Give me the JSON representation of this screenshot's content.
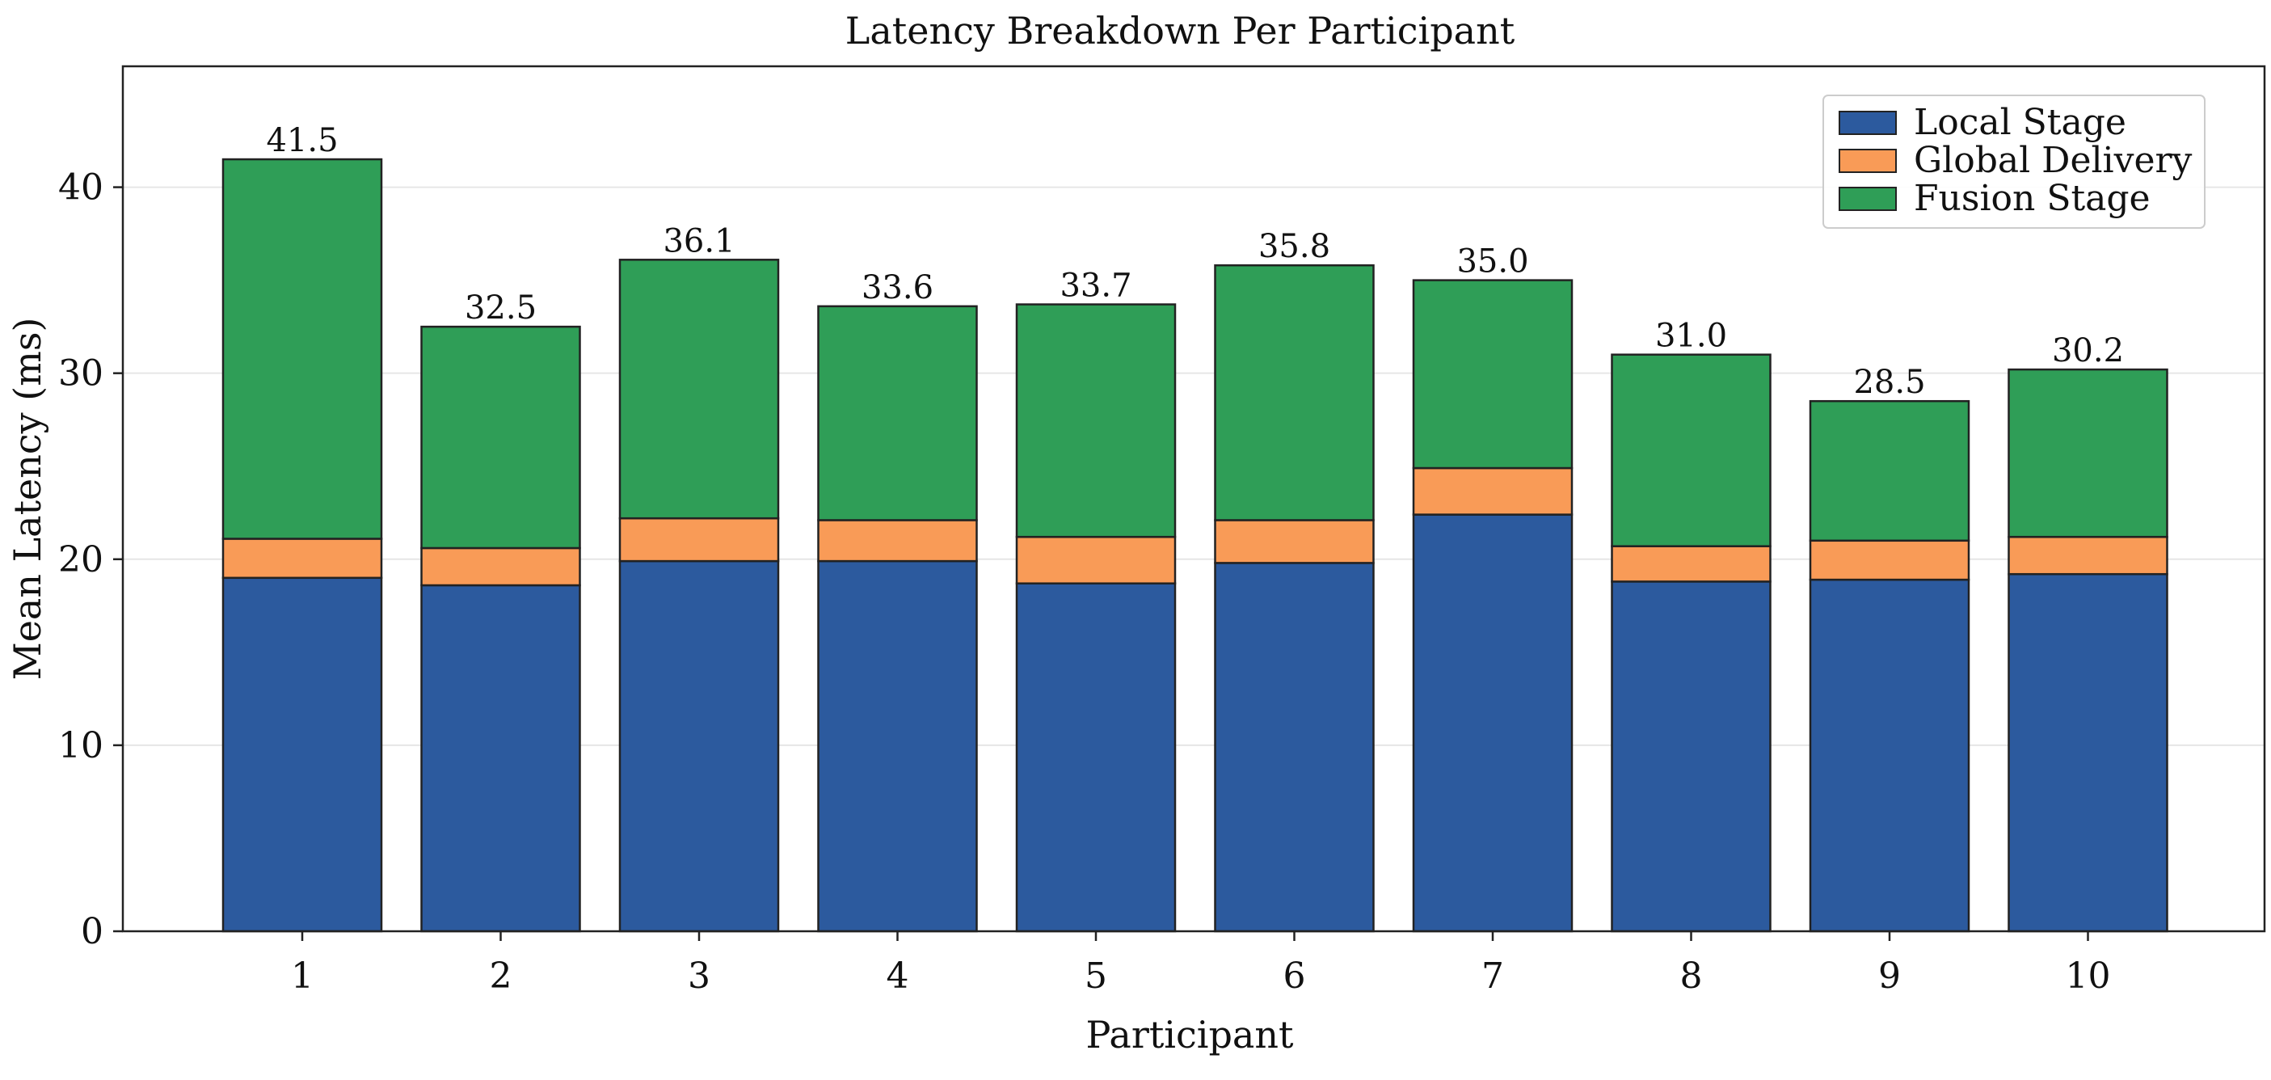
{
  "chart_data": {
    "type": "bar",
    "stacked": true,
    "title": "Latency Breakdown Per Participant",
    "xlabel": "Participant",
    "ylabel": "Mean Latency (ms)",
    "categories": [
      "1",
      "2",
      "3",
      "4",
      "5",
      "6",
      "7",
      "8",
      "9",
      "10"
    ],
    "series": [
      {
        "name": "Local Stage",
        "color": "#2c5a9e",
        "values": [
          19.0,
          18.6,
          19.9,
          19.9,
          18.7,
          19.8,
          22.4,
          18.8,
          18.9,
          19.2
        ]
      },
      {
        "name": "Global Delivery",
        "color": "#f99b57",
        "values": [
          2.1,
          2.0,
          2.3,
          2.2,
          2.5,
          2.3,
          2.5,
          1.9,
          2.1,
          2.0
        ]
      },
      {
        "name": "Fusion Stage",
        "color": "#2f9e57",
        "values": [
          20.4,
          11.9,
          13.9,
          11.5,
          12.5,
          13.7,
          10.1,
          10.3,
          7.5,
          9.0
        ]
      }
    ],
    "totals": [
      "41.5",
      "32.5",
      "36.1",
      "33.6",
      "33.7",
      "35.8",
      "35.0",
      "31.0",
      "28.5",
      "30.2"
    ],
    "yticks": [
      "0",
      "10",
      "20",
      "30",
      "40"
    ],
    "ylim": [
      0,
      46.5
    ],
    "grid": true,
    "legend_position": "top-right"
  }
}
